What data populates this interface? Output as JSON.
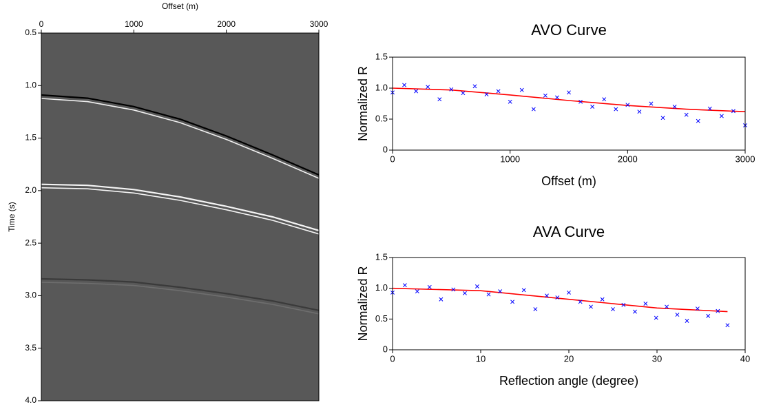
{
  "chart_data": [
    {
      "type": "seismic",
      "xlabel": "Offset (m)",
      "ylabel": "Time (s)",
      "x_axis_position": "top",
      "y_inverted": true,
      "background": "#585858",
      "xlim": [
        0,
        3000
      ],
      "xticks": [
        0,
        1000,
        2000,
        3000
      ],
      "ylim": [
        0.5,
        4.0
      ],
      "yticks": [
        0.5,
        {
          "value": 1.0,
          "label": "1.0"
        },
        1.5,
        {
          "value": 2.0,
          "label": "2.0"
        },
        2.5,
        {
          "value": 3.0,
          "label": "3.0"
        },
        3.5,
        {
          "value": 4.0,
          "label": "4.0"
        }
      ],
      "x": [
        0,
        500,
        1000,
        1500,
        2000,
        2500,
        3000
      ],
      "series": [
        {
          "color": "#000000",
          "color2": "#f0f0f0",
          "values": [
            1.09,
            1.12,
            1.2,
            1.32,
            1.48,
            1.66,
            1.85
          ]
        },
        {
          "color": "#f4f4f4",
          "color2": "#f4f4f4",
          "values": [
            1.94,
            1.95,
            1.99,
            2.06,
            2.15,
            2.25,
            2.38
          ]
        },
        {
          "color": "#3a3a3a",
          "color2": "#6e6e6e",
          "values": [
            2.84,
            2.85,
            2.87,
            2.92,
            2.98,
            3.05,
            3.14
          ]
        }
      ]
    },
    {
      "type": "scatter",
      "title": "AVO Curve",
      "xlabel": "Offset (m)",
      "ylabel": "Normalized R",
      "xlim": [
        0,
        3000
      ],
      "xticks": [
        0,
        1000,
        2000,
        3000
      ],
      "ylim": [
        0,
        1.5
      ],
      "yticks": [
        0,
        0.5,
        {
          "value": 1.0,
          "label": "1.0"
        },
        1.5
      ],
      "x": [
        0,
        100,
        200,
        300,
        400,
        500,
        600,
        700,
        800,
        900,
        1000,
        1100,
        1200,
        1300,
        1400,
        1500,
        1600,
        1700,
        1800,
        1900,
        2000,
        2100,
        2200,
        2300,
        2400,
        2500,
        2600,
        2700,
        2800,
        2900,
        3000
      ],
      "color": "#0000ff",
      "values": [
        0.93,
        1.05,
        0.95,
        1.02,
        0.82,
        0.98,
        0.92,
        1.03,
        0.9,
        0.95,
        0.78,
        0.97,
        0.66,
        0.88,
        0.85,
        0.93,
        0.78,
        0.7,
        0.82,
        0.66,
        0.73,
        0.62,
        0.75,
        0.52,
        0.7,
        0.57,
        0.47,
        0.67,
        0.55,
        0.63,
        0.4
      ],
      "fit": {
        "color": "#ff0000",
        "x": [
          0,
          500,
          1000,
          1500,
          2000,
          2500,
          3000
        ],
        "values": [
          1.0,
          0.97,
          0.89,
          0.8,
          0.72,
          0.66,
          0.62
        ]
      }
    },
    {
      "type": "scatter",
      "title": "AVA Curve",
      "xlabel": "Reflection angle (degree)",
      "ylabel": "Normalized R",
      "xlim": [
        0,
        40
      ],
      "xticks": [
        0,
        10,
        20,
        30,
        40
      ],
      "ylim": [
        0,
        1.5
      ],
      "yticks": [
        0,
        0.5,
        {
          "value": 1.0,
          "label": "1.0"
        },
        1.5
      ],
      "x": [
        0,
        1.4,
        2.8,
        4.2,
        5.5,
        6.9,
        8.2,
        9.6,
        10.9,
        12.2,
        13.6,
        14.9,
        16.2,
        17.5,
        18.7,
        20.0,
        21.3,
        22.5,
        23.8,
        25.0,
        26.2,
        27.5,
        28.7,
        29.9,
        31.1,
        32.3,
        33.4,
        34.6,
        35.8,
        36.9,
        38.0
      ],
      "color": "#0000ff",
      "values": [
        0.93,
        1.05,
        0.95,
        1.02,
        0.82,
        0.98,
        0.92,
        1.03,
        0.9,
        0.95,
        0.78,
        0.97,
        0.66,
        0.88,
        0.85,
        0.93,
        0.78,
        0.7,
        0.82,
        0.66,
        0.73,
        0.62,
        0.75,
        0.52,
        0.7,
        0.57,
        0.47,
        0.67,
        0.55,
        0.63,
        0.4
      ],
      "fit": {
        "color": "#ff0000",
        "x": [
          0,
          10,
          20,
          30,
          38
        ],
        "values": [
          1.0,
          0.96,
          0.82,
          0.68,
          0.62
        ]
      }
    }
  ]
}
